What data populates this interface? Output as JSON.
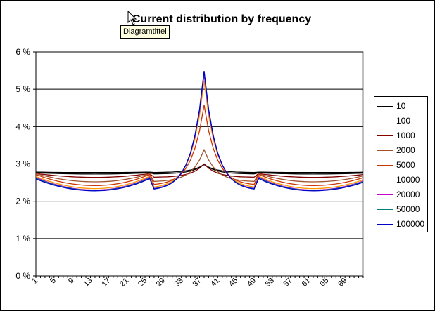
{
  "tooltip": {
    "text": "Diagramtittel"
  },
  "chart_data": {
    "type": "line",
    "title": "Current distribution by frequency",
    "xlabel": "",
    "ylabel": "",
    "ylim": [
      0,
      6
    ],
    "y_ticks": [
      "0 %",
      "1 %",
      "2 %",
      "3 %",
      "4 %",
      "5 %",
      "6 %"
    ],
    "x_tick_labels": [
      "1",
      "5",
      "9",
      "13",
      "17",
      "21",
      "25",
      "29",
      "33",
      "37",
      "41",
      "45",
      "49",
      "53",
      "57",
      "61",
      "65",
      "69"
    ],
    "x_count": 73,
    "grid": "horizontal",
    "legend": "right",
    "series": [
      {
        "name": "10",
        "color": "#000000",
        "edge": 2.78,
        "min": 2.77,
        "peak": 2.98
      },
      {
        "name": "100",
        "color": "#000000",
        "edge": 2.76,
        "min": 2.73,
        "peak": 2.99
      },
      {
        "name": "1000",
        "color": "#800000",
        "edge": 2.74,
        "min": 2.64,
        "peak": 3.0
      },
      {
        "name": "2000",
        "color": "#a0522d",
        "edge": 2.73,
        "min": 2.52,
        "peak": 3.38
      },
      {
        "name": "5000",
        "color": "#cc3300",
        "edge": 2.7,
        "min": 2.42,
        "peak": 4.58
      },
      {
        "name": "10000",
        "color": "#ff9900",
        "edge": 2.65,
        "min": 2.34,
        "peak": 5.22
      },
      {
        "name": "20000",
        "color": "#cc00cc",
        "edge": 2.62,
        "min": 2.3,
        "peak": 5.4
      },
      {
        "name": "50000",
        "color": "#008080",
        "edge": 2.6,
        "min": 2.29,
        "peak": 5.46
      },
      {
        "name": "100000",
        "color": "#0000cc",
        "edge": 2.58,
        "min": 2.28,
        "peak": 5.49
      }
    ]
  }
}
